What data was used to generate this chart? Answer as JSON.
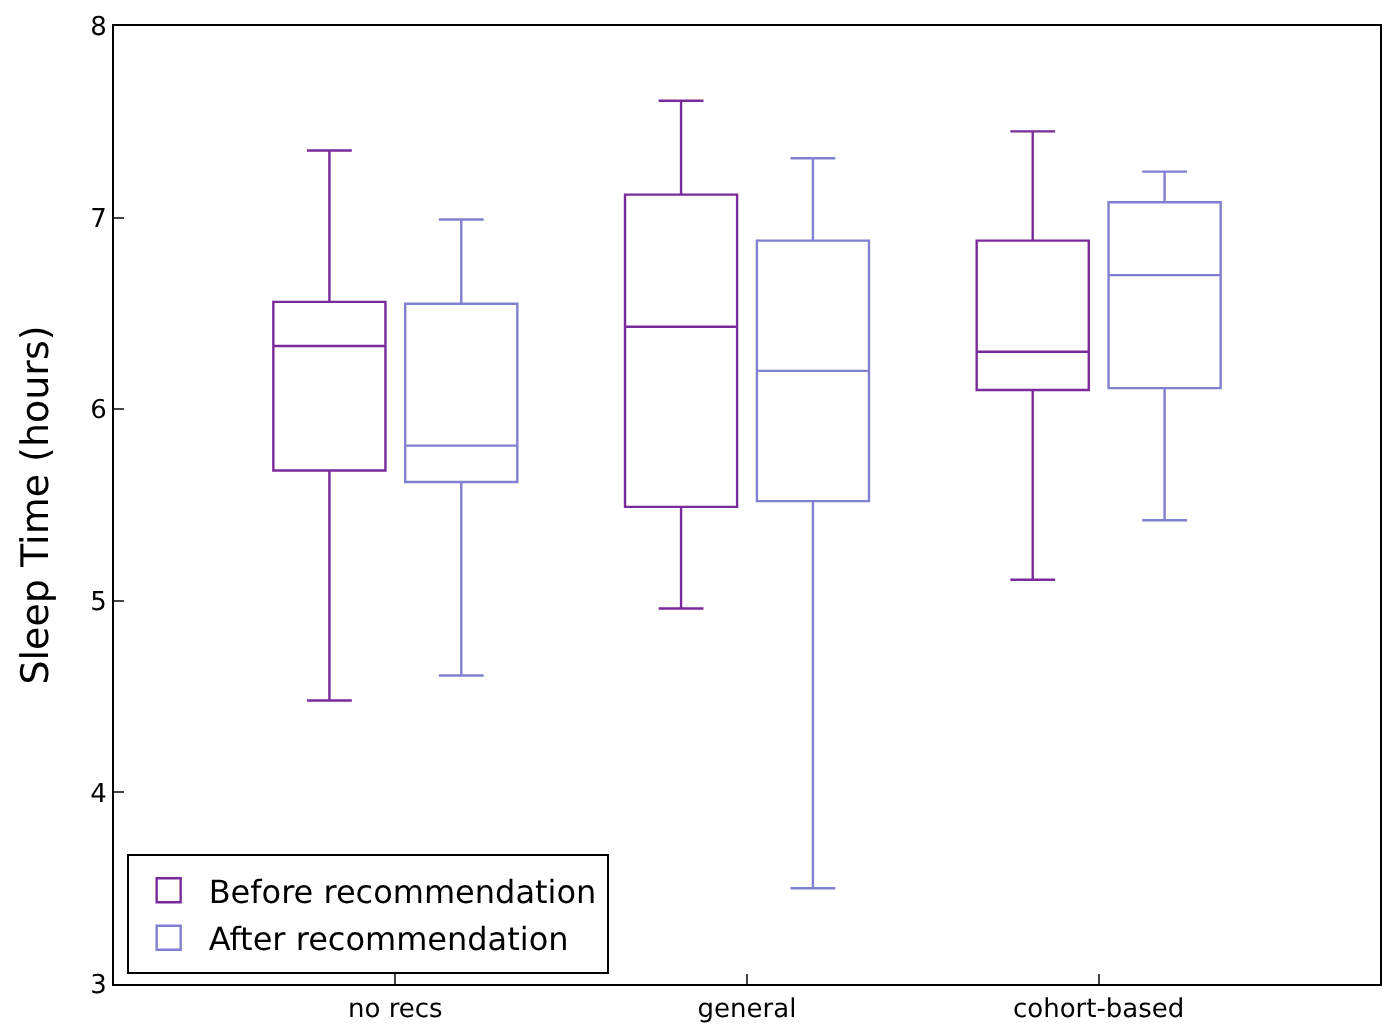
{
  "chart_data": {
    "type": "box",
    "ylabel": "Sleep Time (hours)",
    "categories": [
      "no recs",
      "general",
      "cohort-based"
    ],
    "ylim": [
      3,
      8
    ],
    "yticks": [
      3,
      4,
      5,
      6,
      7,
      8
    ],
    "legend": "bottom left",
    "series": [
      {
        "name": "Before recommendation",
        "color": "#7b2a9c",
        "boxes": [
          {
            "low": 4.48,
            "q1": 5.68,
            "median": 6.33,
            "q3": 6.56,
            "high": 7.35
          },
          {
            "low": 4.96,
            "q1": 5.49,
            "median": 6.43,
            "q3": 7.12,
            "high": 7.61
          },
          {
            "low": 5.11,
            "q1": 6.1,
            "median": 6.3,
            "q3": 6.88,
            "high": 7.45
          }
        ]
      },
      {
        "name": "After recommendation",
        "color": "#8080d0",
        "boxes": [
          {
            "low": 4.61,
            "q1": 5.62,
            "median": 5.81,
            "q3": 6.55,
            "high": 6.99
          },
          {
            "low": 3.5,
            "q1": 5.52,
            "median": 6.2,
            "q3": 6.88,
            "high": 7.31
          },
          {
            "low": 5.42,
            "q1": 6.11,
            "median": 6.7,
            "q3": 7.08,
            "high": 7.24
          }
        ]
      }
    ]
  }
}
